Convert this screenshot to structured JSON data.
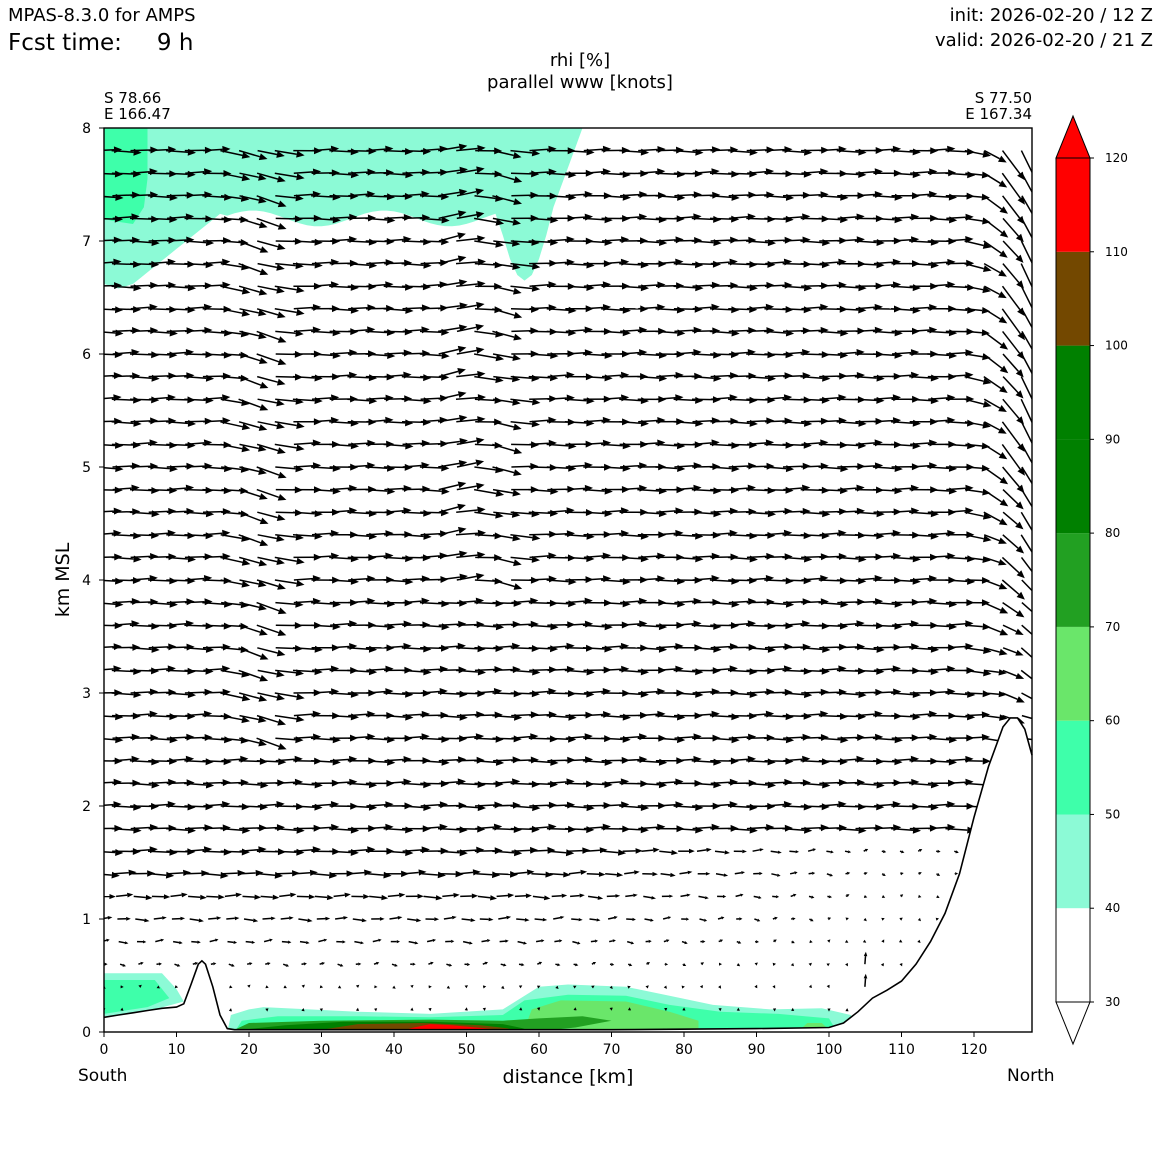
{
  "header": {
    "model": "MPAS-8.3.0 for AMPS",
    "fcst_label": "Fcst time:",
    "fcst_value": "9 h",
    "init": "init: 2026-02-20 / 12 Z",
    "valid": "valid: 2026-02-20 / 21 Z"
  },
  "section_ends": {
    "left_lat": "S 78.66",
    "left_lon": "E 166.47",
    "right_lat": "S 77.50",
    "right_lon": "E 167.34",
    "south_label": "South",
    "north_label": "North"
  },
  "chart_data": {
    "type": "heatmap",
    "title": "rhi [%]",
    "subtitle": "parallel www [knots]",
    "xlabel": "distance [km]",
    "ylabel": "km MSL",
    "xlim": [
      0,
      128
    ],
    "ylim": [
      0,
      8
    ],
    "x_ticks": [
      "0",
      "10",
      "20",
      "30",
      "40",
      "50",
      "60",
      "70",
      "80",
      "90",
      "100",
      "110",
      "120"
    ],
    "y_ticks": [
      "0",
      "1",
      "2",
      "3",
      "4",
      "5",
      "6",
      "7",
      "8"
    ],
    "colorbar": {
      "levels": [
        "30",
        "40",
        "50",
        "60",
        "70",
        "80",
        "90",
        "100",
        "110",
        "120"
      ],
      "colors": [
        "#ffffff",
        "#8cfad6",
        "#3effaa",
        "#6ae66a",
        "#22a022",
        "#008000",
        "#008000",
        "#734800",
        "#ff0000"
      ],
      "extend": "both"
    },
    "terrain_km": [
      [
        0,
        0.13
      ],
      [
        2,
        0.15
      ],
      [
        4,
        0.17
      ],
      [
        6,
        0.19
      ],
      [
        8,
        0.21
      ],
      [
        10,
        0.22
      ],
      [
        11,
        0.25
      ],
      [
        12,
        0.42
      ],
      [
        13,
        0.6
      ],
      [
        13.5,
        0.63
      ],
      [
        14,
        0.6
      ],
      [
        15,
        0.4
      ],
      [
        16,
        0.15
      ],
      [
        17,
        0.03
      ],
      [
        18,
        0.02
      ],
      [
        30,
        0.02
      ],
      [
        50,
        0.02
      ],
      [
        70,
        0.02
      ],
      [
        90,
        0.03
      ],
      [
        100,
        0.04
      ],
      [
        102,
        0.08
      ],
      [
        104,
        0.18
      ],
      [
        106,
        0.3
      ],
      [
        108,
        0.37
      ],
      [
        110,
        0.45
      ],
      [
        112,
        0.6
      ],
      [
        114,
        0.8
      ],
      [
        116,
        1.05
      ],
      [
        118,
        1.4
      ],
      [
        120,
        1.9
      ],
      [
        122,
        2.35
      ],
      [
        124,
        2.7
      ],
      [
        125,
        2.78
      ],
      [
        126,
        2.78
      ],
      [
        127,
        2.68
      ],
      [
        128,
        2.45
      ]
    ],
    "rh_regions": [
      {
        "level": "40-50",
        "x": [
          0,
          66
        ],
        "y": [
          6.5,
          8.0
        ]
      },
      {
        "level": "50-60",
        "x": [
          0,
          6
        ],
        "y": [
          7.2,
          8.0
        ]
      },
      {
        "level": "40-50",
        "x": [
          0,
          11
        ],
        "y": [
          0.2,
          0.5
        ]
      },
      {
        "level": "50-60",
        "x": [
          0,
          9
        ],
        "y": [
          0.22,
          0.45
        ]
      },
      {
        "level": "40-60",
        "x": [
          17,
          104
        ],
        "y": [
          0.0,
          0.4
        ]
      },
      {
        "level": "60-70",
        "x": [
          58,
          82
        ],
        "y": [
          0.03,
          0.28
        ]
      },
      {
        "level": "70-100",
        "x": [
          18,
          65
        ],
        "y": [
          0.0,
          0.11
        ]
      },
      {
        "level": "110-120",
        "x": [
          34,
          57
        ],
        "y": [
          0.0,
          0.07
        ]
      }
    ],
    "wind_vectors": "parallel wind arrows at 2.5 km x 0.2 km spacing; strong near-horizontal flow above 1.5 km, weak near-surface flow, strong downslope flow near 120-128 km"
  }
}
